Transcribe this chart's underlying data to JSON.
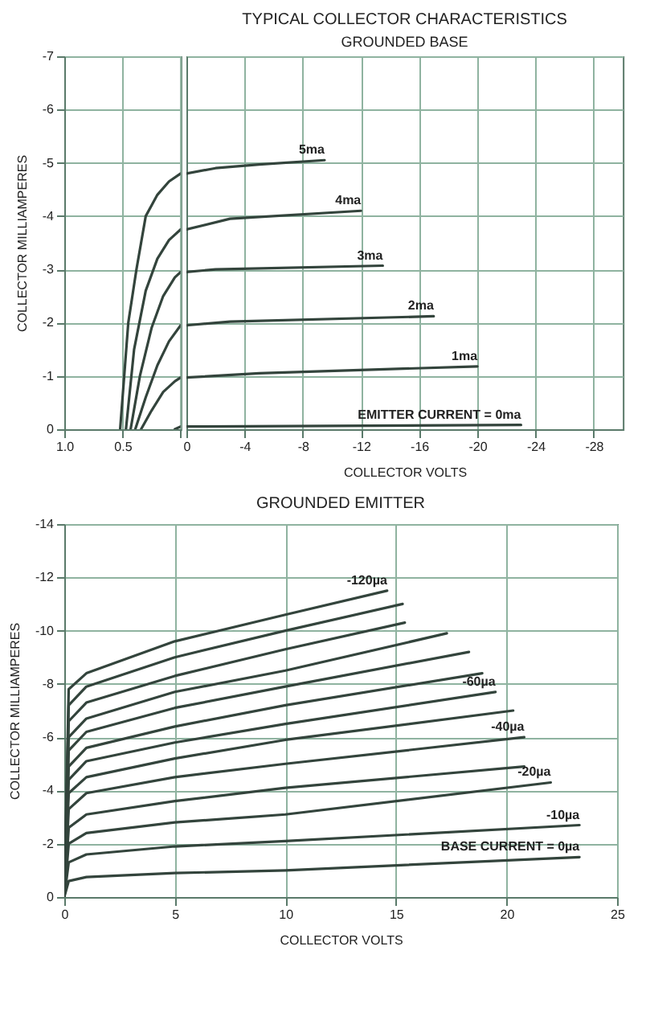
{
  "chart_data": [
    {
      "type": "line",
      "ylabel": "COLLECTOR MILLIAMPERES",
      "grid": true,
      "xlim": [
        1,
        0
      ],
      "xticks": [
        {
          "value": 1,
          "label": "1.0"
        },
        0.5,
        {
          "value": 0,
          "label": null
        }
      ],
      "ylim": [
        0,
        -7
      ],
      "yticks": [
        0,
        -1,
        -2,
        -3,
        -4,
        -5,
        -6,
        -7
      ],
      "series": [
        {
          "color": "#33443c",
          "x": [
            0.52,
            0.45,
            0.38,
            0.3,
            0.2,
            0.1,
            0
          ],
          "values": [
            0,
            -2,
            -3,
            -4,
            -4.4,
            -4.65,
            -4.8
          ]
        },
        {
          "color": "#33443c",
          "x": [
            0.47,
            0.4,
            0.3,
            0.2,
            0.1,
            0
          ],
          "values": [
            0,
            -1.5,
            -2.6,
            -3.2,
            -3.55,
            -3.75
          ]
        },
        {
          "color": "#33443c",
          "x": [
            0.43,
            0.35,
            0.25,
            0.15,
            0.05,
            0
          ],
          "values": [
            0,
            -1,
            -1.9,
            -2.5,
            -2.85,
            -2.95
          ]
        },
        {
          "color": "#33443c",
          "x": [
            0.39,
            0.3,
            0.2,
            0.1,
            0
          ],
          "values": [
            0,
            -0.6,
            -1.2,
            -1.65,
            -1.95
          ]
        },
        {
          "color": "#33443c",
          "x": [
            0.34,
            0.25,
            0.15,
            0.05,
            0
          ],
          "values": [
            0,
            -0.35,
            -0.7,
            -0.9,
            -0.97
          ]
        },
        {
          "color": "#33443c",
          "x": [
            0.05,
            0
          ],
          "values": [
            0,
            -0.05
          ]
        }
      ]
    },
    {
      "type": "line",
      "title": "TYPICAL COLLECTOR CHARACTERISTICS",
      "subtitle": "GROUNDED BASE",
      "xlabel": "COLLECTOR VOLTS",
      "grid": true,
      "tick_labels": "x",
      "xlim": [
        0,
        -30
      ],
      "xticks": [
        0,
        -4,
        -8,
        -12,
        -16,
        -20,
        -24,
        -28
      ],
      "ylim": [
        0,
        -7
      ],
      "yticks": [
        0,
        -1,
        -2,
        -3,
        -4,
        -5,
        -6,
        -7
      ],
      "series": [
        {
          "name": "5ma",
          "color": "#33443c",
          "x": [
            0,
            -2,
            -5,
            -9.5
          ],
          "values": [
            -4.8,
            -4.9,
            -4.97,
            -5.05
          ]
        },
        {
          "name": "4ma",
          "color": "#33443c",
          "x": [
            0,
            -3,
            -12
          ],
          "values": [
            -3.75,
            -3.95,
            -4.1
          ]
        },
        {
          "name": "3ma",
          "color": "#33443c",
          "x": [
            0,
            -2,
            -13.5
          ],
          "values": [
            -2.95,
            -3.0,
            -3.07
          ]
        },
        {
          "name": "2ma",
          "color": "#33443c",
          "x": [
            0,
            -3,
            -17
          ],
          "values": [
            -1.95,
            -2.02,
            -2.12
          ]
        },
        {
          "name": "1ma",
          "color": "#33443c",
          "x": [
            0,
            -5,
            -20
          ],
          "values": [
            -0.97,
            -1.05,
            -1.18
          ]
        },
        {
          "name": "EMITTER CURRENT = 0ma",
          "color": "#33443c",
          "x": [
            0,
            -23
          ],
          "values": [
            -0.05,
            -0.08
          ]
        }
      ]
    },
    {
      "type": "line",
      "title": "GROUNDED EMITTER",
      "xlabel": "COLLECTOR VOLTS",
      "ylabel": "COLLECTOR MILLIAMPERES",
      "grid": true,
      "xlim": [
        0,
        25
      ],
      "xticks": [
        0,
        5,
        10,
        15,
        20,
        25
      ],
      "ylim": [
        0,
        -14
      ],
      "yticks": [
        0,
        -2,
        -4,
        -6,
        -8,
        -10,
        -12,
        -14
      ],
      "series": [
        {
          "name": "-120µa",
          "color": "#33443c",
          "x": [
            0,
            0.2,
            1,
            5,
            10,
            14.6
          ],
          "values": [
            0,
            -7.8,
            -8.4,
            -9.6,
            -10.6,
            -11.5
          ]
        },
        {
          "color": "#33443c",
          "x": [
            0,
            0.2,
            1,
            5,
            10,
            15.3
          ],
          "values": [
            0,
            -7.2,
            -7.9,
            -9.0,
            -10.0,
            -11.0
          ]
        },
        {
          "color": "#33443c",
          "x": [
            0,
            0.2,
            1,
            5,
            10,
            15.4
          ],
          "values": [
            0,
            -6.6,
            -7.3,
            -8.3,
            -9.3,
            -10.3
          ]
        },
        {
          "color": "#33443c",
          "x": [
            0,
            0.2,
            1,
            5,
            10,
            17.3
          ],
          "values": [
            0,
            -6.0,
            -6.7,
            -7.7,
            -8.5,
            -9.9
          ]
        },
        {
          "color": "#33443c",
          "x": [
            0,
            0.2,
            1,
            5,
            10,
            18.3
          ],
          "values": [
            0,
            -5.5,
            -6.2,
            -7.1,
            -7.9,
            -9.2
          ]
        },
        {
          "color": "#33443c",
          "x": [
            0,
            0.2,
            1,
            5,
            10,
            18.9
          ],
          "values": [
            0,
            -4.9,
            -5.6,
            -6.4,
            -7.2,
            -8.4
          ]
        },
        {
          "name": "-60µa",
          "color": "#33443c",
          "x": [
            0,
            0.2,
            1,
            5,
            10,
            19.5
          ],
          "values": [
            0,
            -4.4,
            -5.1,
            -5.8,
            -6.5,
            -7.7
          ]
        },
        {
          "color": "#33443c",
          "x": [
            0,
            0.2,
            1,
            5,
            10,
            20.3
          ],
          "values": [
            0,
            -3.9,
            -4.5,
            -5.2,
            -5.9,
            -7.0
          ]
        },
        {
          "name": "-40µa",
          "color": "#33443c",
          "x": [
            0,
            0.2,
            1,
            5,
            10,
            20.8
          ],
          "values": [
            0,
            -3.3,
            -3.9,
            -4.5,
            -5.0,
            -6.0
          ]
        },
        {
          "color": "#33443c",
          "x": [
            0,
            0.2,
            1,
            5,
            10,
            20.8
          ],
          "values": [
            0,
            -2.6,
            -3.1,
            -3.6,
            -4.1,
            -4.9
          ]
        },
        {
          "name": "-20µa",
          "color": "#33443c",
          "x": [
            0,
            0.2,
            1,
            5,
            10,
            22.0
          ],
          "values": [
            0,
            -2.0,
            -2.4,
            -2.8,
            -3.1,
            -4.3
          ]
        },
        {
          "name": "-10µa",
          "color": "#33443c",
          "x": [
            0,
            0.2,
            1,
            5,
            10,
            23.3
          ],
          "values": [
            0,
            -1.3,
            -1.6,
            -1.9,
            -2.1,
            -2.7
          ]
        },
        {
          "name": "BASE CURRENT = 0µa",
          "color": "#33443c",
          "x": [
            0,
            0.2,
            1,
            5,
            10,
            23.3
          ],
          "values": [
            0,
            -0.6,
            -0.75,
            -0.9,
            -1.0,
            -1.5
          ]
        }
      ]
    }
  ]
}
